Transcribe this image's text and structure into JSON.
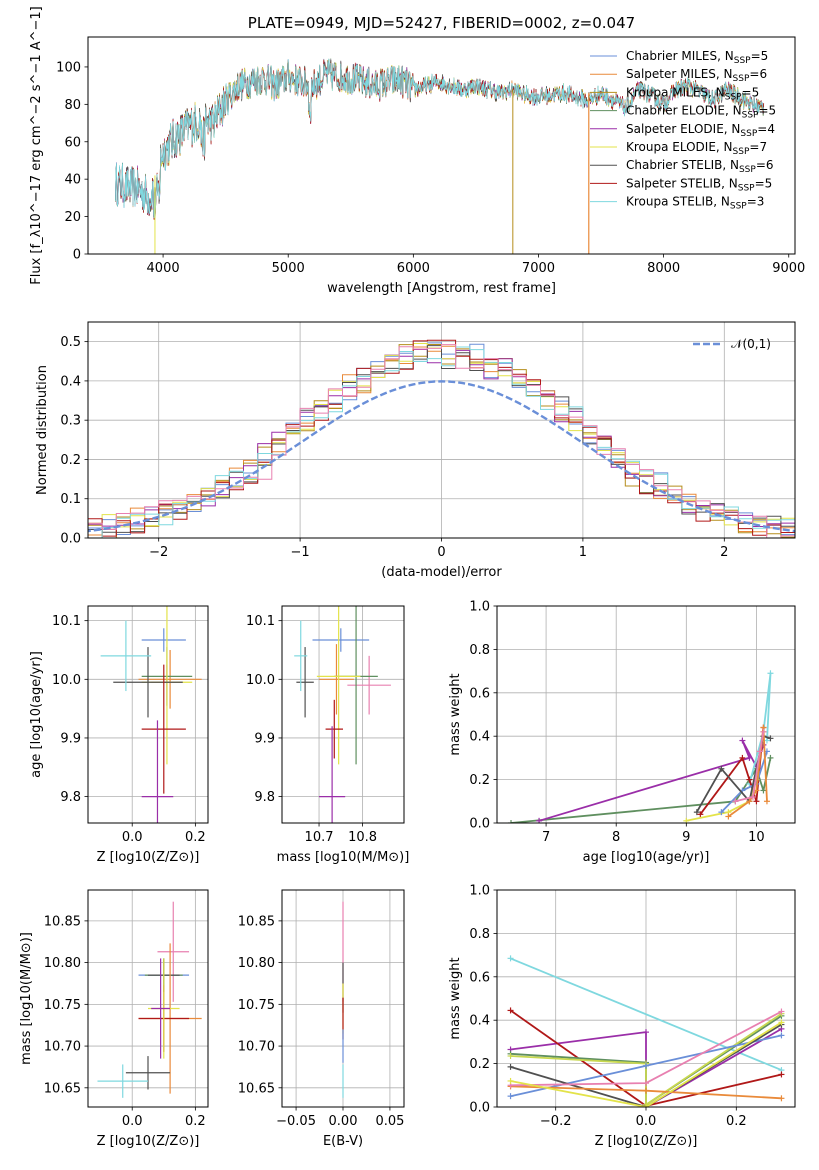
{
  "colors": [
    "#6a8fd8",
    "#e98a3a",
    "#b58e1c",
    "#5f8f5f",
    "#9a2ea8",
    "#e3e34a",
    "#505050",
    "#b01818",
    "#7fd8df",
    "#e880b0",
    "#c8d850"
  ],
  "chart_data": [
    {
      "id": "spectrum",
      "type": "line",
      "title": "PLATE=0949, MJD=52427, FIBERID=0002, z=0.047",
      "xlabel": "wavelength [Angstrom, rest frame]",
      "ylabel": "Flux [f_λ10^−17 erg cm^−2 s^−1 A^−1]",
      "xlim": [
        3400,
        9050
      ],
      "ylim": [
        0,
        116
      ],
      "xticks": [
        4000,
        5000,
        6000,
        7000,
        8000,
        9000
      ],
      "yticks": [
        0,
        20,
        40,
        60,
        80,
        100
      ],
      "grid": false,
      "legend_position": "top-right",
      "spectrum_x": [
        3620,
        3700,
        3800,
        3900,
        3950,
        4000,
        4100,
        4200,
        4300,
        4400,
        4500,
        4600,
        4700,
        4800,
        4900,
        5000,
        5100,
        5200,
        5300,
        5400,
        5500,
        5600,
        5700,
        5800,
        5900,
        6000,
        6100,
        6200,
        6300,
        6400,
        6500,
        6600,
        6700,
        6800,
        6900,
        7000,
        7100,
        7200,
        7300,
        7400,
        7500,
        7600,
        7700,
        7800,
        7900,
        8000,
        8100,
        8200,
        8300,
        8400,
        8500,
        8600,
        8700,
        8800
      ],
      "spectrum_y": [
        38,
        36,
        35,
        30,
        45,
        55,
        62,
        68,
        72,
        70,
        82,
        90,
        92,
        94,
        90,
        95,
        92,
        90,
        96,
        95,
        94,
        92,
        90,
        92,
        93,
        88,
        90,
        92,
        90,
        88,
        90,
        88,
        86,
        88,
        85,
        84,
        85,
        86,
        84,
        82,
        86,
        82,
        78,
        88,
        85,
        80,
        88,
        90,
        86,
        82,
        88,
        84,
        80,
        78
      ],
      "series": [
        {
          "name": "Chabrier MILES, N_SSP=5",
          "color": "#6a8fd8"
        },
        {
          "name": "Salpeter MILES, N_SSP=6",
          "color": "#e98a3a"
        },
        {
          "name": "Kroupa MILES, N_SSP=5",
          "color": "#b58e1c"
        },
        {
          "name": "Chabrier ELODIE, N_SSP=5",
          "color": "#5f8f5f"
        },
        {
          "name": "Salpeter ELODIE, N_SSP=4",
          "color": "#9a2ea8"
        },
        {
          "name": "Kroupa ELODIE, N_SSP=7",
          "color": "#e3e34a"
        },
        {
          "name": "Chabrier STELIB, N_SSP=6",
          "color": "#505050"
        },
        {
          "name": "Salpeter STELIB, N_SSP=5",
          "color": "#b01818"
        },
        {
          "name": "Kroupa STELIB, N_SSP=3",
          "color": "#7fd8df"
        }
      ]
    },
    {
      "id": "residuals",
      "type": "histogram",
      "xlabel": "(data-model)/error",
      "ylabel": "Normed distribution",
      "xlim": [
        -2.5,
        2.5
      ],
      "ylim": [
        0,
        0.55
      ],
      "xticks": [
        -2,
        -1,
        0,
        1,
        2
      ],
      "yticks": [
        0.0,
        0.1,
        0.2,
        0.3,
        0.4,
        0.5
      ],
      "grid": true,
      "legend_position": "top-right",
      "legend_label": "𝒩(0,1)",
      "gauss_color": "#6a8fd8",
      "bin_width": 0.1,
      "n_histograms": 9
    },
    {
      "id": "age_vs_Z",
      "type": "errorbar",
      "xlabel": "Z [log10(Z/Z⊙)]",
      "ylabel": "age  [log10(age/yr)]",
      "xlim": [
        -0.14,
        0.24
      ],
      "ylim": [
        9.755,
        10.125
      ],
      "xticks": [
        0.0,
        0.2
      ],
      "yticks": [
        9.8,
        9.9,
        10.0,
        10.1
      ],
      "grid": true,
      "points": [
        {
          "x": 0.1,
          "y": 10.067,
          "xerr": 0.07,
          "yerr": 0.02,
          "color": "#6a8fd8"
        },
        {
          "x": 0.11,
          "y": 9.995,
          "xerr": 0.05,
          "yerr": 0.03,
          "color": "#e880b0"
        },
        {
          "x": 0.12,
          "y": 10.0,
          "xerr": 0.1,
          "yerr": 0.05,
          "color": "#e98a3a"
        },
        {
          "x": 0.11,
          "y": 10.005,
          "xerr": 0.08,
          "yerr": 0.05,
          "color": "#5f8f5f"
        },
        {
          "x": 0.11,
          "y": 9.995,
          "xerr": 0.08,
          "yerr": 0.14,
          "color": "#e3e34a"
        },
        {
          "x": 0.05,
          "y": 9.995,
          "xerr": 0.11,
          "yerr": 0.06,
          "color": "#505050"
        },
        {
          "x": 0.1,
          "y": 9.915,
          "xerr": 0.07,
          "yerr": 0.11,
          "color": "#b01818"
        },
        {
          "x": 0.08,
          "y": 9.8,
          "xerr": 0.05,
          "yerr": 0.13,
          "color": "#9a2ea8"
        },
        {
          "x": -0.02,
          "y": 10.04,
          "xerr": 0.08,
          "yerr": 0.06,
          "color": "#7fd8df"
        }
      ]
    },
    {
      "id": "age_vs_mass",
      "type": "errorbar",
      "xlabel": "mass [log10(M/M⊙)]",
      "ylabel": "",
      "xlim": [
        10.615,
        10.895
      ],
      "ylim": [
        9.755,
        10.125
      ],
      "xticks": [
        10.7,
        10.8
      ],
      "yticks": [
        9.8,
        9.9,
        10.0,
        10.1
      ],
      "grid": true,
      "points": [
        {
          "x": 10.75,
          "y": 10.067,
          "xerr": 0.065,
          "yerr": 0.02,
          "color": "#6a8fd8"
        },
        {
          "x": 10.815,
          "y": 9.99,
          "xerr": 0.05,
          "yerr": 0.05,
          "color": "#e880b0"
        },
        {
          "x": 10.74,
          "y": 10.0,
          "xerr": 0.04,
          "yerr": 0.06,
          "color": "#e98a3a"
        },
        {
          "x": 10.785,
          "y": 10.005,
          "xerr": 0.05,
          "yerr": 0.15,
          "color": "#5f8f5f"
        },
        {
          "x": 10.745,
          "y": 10.005,
          "xerr": 0.05,
          "yerr": 0.15,
          "color": "#e3e34a"
        },
        {
          "x": 10.668,
          "y": 9.995,
          "xerr": 0.02,
          "yerr": 0.06,
          "color": "#505050"
        },
        {
          "x": 10.735,
          "y": 9.915,
          "xerr": 0.02,
          "yerr": 0.05,
          "color": "#b01818"
        },
        {
          "x": 10.73,
          "y": 9.8,
          "xerr": 0.03,
          "yerr": 0.12,
          "color": "#9a2ea8"
        },
        {
          "x": 10.658,
          "y": 10.04,
          "xerr": 0.015,
          "yerr": 0.06,
          "color": "#7fd8df"
        }
      ]
    },
    {
      "id": "weight_vs_age",
      "type": "line",
      "xlabel": "age  [log10(age/yr)]",
      "ylabel": "mass weight",
      "xlim": [
        6.3,
        10.55
      ],
      "ylim": [
        0,
        1
      ],
      "xticks": [
        7,
        8,
        9,
        10
      ],
      "yticks": [
        0.0,
        0.2,
        0.4,
        0.6,
        0.8,
        1.0
      ],
      "grid": true,
      "series": [
        {
          "color": "#5f8f5f",
          "x": [
            6.5,
            9.7,
            10.0,
            10.1,
            10.2
          ],
          "y": [
            0.0,
            0.1,
            0.25,
            0.15,
            0.3
          ]
        },
        {
          "color": "#9a2ea8",
          "x": [
            6.9,
            9.9,
            9.8,
            10.0,
            10.1
          ],
          "y": [
            0.01,
            0.3,
            0.38,
            0.26,
            0.36
          ]
        },
        {
          "color": "#7fd8df",
          "x": [
            9.9,
            10.1,
            10.2,
            10.15
          ],
          "y": [
            0.18,
            0.42,
            0.69,
            0.38
          ]
        },
        {
          "color": "#b01818",
          "x": [
            9.2,
            9.8,
            9.9,
            10.0,
            10.1
          ],
          "y": [
            0.04,
            0.3,
            0.2,
            0.1,
            0.44
          ]
        },
        {
          "color": "#e3e34a",
          "x": [
            9.0,
            9.6,
            9.9,
            10.0,
            10.1
          ],
          "y": [
            0.01,
            0.05,
            0.1,
            0.2,
            0.42
          ]
        },
        {
          "color": "#6a8fd8",
          "x": [
            9.5,
            9.8,
            10.0,
            10.15
          ],
          "y": [
            0.05,
            0.15,
            0.18,
            0.33
          ]
        },
        {
          "color": "#505050",
          "x": [
            9.15,
            9.5,
            9.9,
            10.1,
            10.2
          ],
          "y": [
            0.05,
            0.25,
            0.1,
            0.4,
            0.39
          ]
        },
        {
          "color": "#e98a3a",
          "x": [
            9.6,
            9.9,
            10.0,
            10.1,
            10.15
          ],
          "y": [
            0.03,
            0.1,
            0.15,
            0.44,
            0.1
          ]
        },
        {
          "color": "#e880b0",
          "x": [
            9.7,
            9.95,
            10.05,
            10.1
          ],
          "y": [
            0.1,
            0.12,
            0.33,
            0.42
          ]
        }
      ]
    },
    {
      "id": "mass_vs_Z",
      "type": "errorbar",
      "xlabel": "Z [log10(Z/Z⊙)]",
      "ylabel": "mass [log10(M/M⊙)]",
      "xlim": [
        -0.14,
        0.24
      ],
      "ylim": [
        10.627,
        10.887
      ],
      "xticks": [
        0.0,
        0.2
      ],
      "yticks": [
        10.65,
        10.7,
        10.75,
        10.8,
        10.85
      ],
      "grid": true,
      "points": [
        {
          "x": 0.13,
          "y": 10.813,
          "xerr": 0.05,
          "yerr": 0.06,
          "color": "#e880b0"
        },
        {
          "x": 0.1,
          "y": 10.785,
          "xerr": 0.08,
          "yerr": 0.02,
          "color": "#6a8fd8"
        },
        {
          "x": 0.1,
          "y": 10.785,
          "xerr": 0.06,
          "yerr": 0.02,
          "color": "#5f8f5f"
        },
        {
          "x": 0.1,
          "y": 10.785,
          "xerr": 0.05,
          "yerr": 0.02,
          "color": "#505050"
        },
        {
          "x": 0.12,
          "y": 10.733,
          "xerr": 0.1,
          "yerr": 0.09,
          "color": "#e98a3a"
        },
        {
          "x": 0.1,
          "y": 10.733,
          "xerr": 0.08,
          "yerr": 0.04,
          "color": "#b01818"
        },
        {
          "x": 0.1,
          "y": 10.745,
          "xerr": 0.05,
          "yerr": 0.06,
          "color": "#e3e34a"
        },
        {
          "x": 0.09,
          "y": 10.745,
          "xerr": 0.03,
          "yerr": 0.06,
          "color": "#9a2ea8"
        },
        {
          "x": 0.05,
          "y": 10.668,
          "xerr": 0.07,
          "yerr": 0.02,
          "color": "#505050"
        },
        {
          "x": -0.03,
          "y": 10.658,
          "xerr": 0.08,
          "yerr": 0.02,
          "color": "#7fd8df"
        }
      ]
    },
    {
      "id": "mass_vs_ebv",
      "type": "errorbar",
      "xlabel": "E(B-V)",
      "ylabel": "",
      "xlim": [
        -0.065,
        0.065
      ],
      "ylim": [
        10.627,
        10.887
      ],
      "xticks": [
        -0.05,
        0.0,
        0.05
      ],
      "yticks": [
        10.65,
        10.7,
        10.75,
        10.8,
        10.85
      ],
      "grid": true,
      "points": [
        {
          "x": 0.0,
          "y": 10.813,
          "xerr": 0.0,
          "yerr": 0.06,
          "color": "#e880b0"
        },
        {
          "x": 0.0,
          "y": 10.77,
          "xerr": 0.0,
          "yerr": 0.03,
          "color": "#505050"
        },
        {
          "x": 0.0,
          "y": 10.745,
          "xerr": 0.0,
          "yerr": 0.03,
          "color": "#e3e34a"
        },
        {
          "x": 0.0,
          "y": 10.733,
          "xerr": 0.0,
          "yerr": 0.025,
          "color": "#b01818"
        },
        {
          "x": 0.0,
          "y": 10.7,
          "xerr": 0.0,
          "yerr": 0.02,
          "color": "#6a8fd8"
        },
        {
          "x": 0.0,
          "y": 10.658,
          "xerr": 0.0,
          "yerr": 0.02,
          "color": "#7fd8df"
        }
      ]
    },
    {
      "id": "weight_vs_Z",
      "type": "line",
      "xlabel": "Z [log10(Z/Z⊙)]",
      "ylabel": "mass weight",
      "xlim": [
        -0.33,
        0.33
      ],
      "ylim": [
        0,
        1
      ],
      "xticks": [
        -0.2,
        0.0,
        0.2
      ],
      "yticks": [
        0.0,
        0.2,
        0.4,
        0.6,
        0.8,
        1.0
      ],
      "grid": true,
      "series": [
        {
          "color": "#7fd8df",
          "x": [
            -0.3,
            0.3
          ],
          "y": [
            0.685,
            0.17
          ]
        },
        {
          "color": "#9a2ea8",
          "x": [
            -0.3,
            0.0,
            0.0,
            0.3
          ],
          "y": [
            0.265,
            0.345,
            0.0,
            0.36
          ]
        },
        {
          "color": "#b01818",
          "x": [
            -0.3,
            0.0,
            0.3
          ],
          "y": [
            0.445,
            0.005,
            0.15
          ]
        },
        {
          "color": "#5f8f5f",
          "x": [
            -0.3,
            0.0,
            0.0,
            0.3
          ],
          "y": [
            0.245,
            0.205,
            0.01,
            0.42
          ]
        },
        {
          "color": "#c8d850",
          "x": [
            -0.3,
            0.0,
            0.0,
            0.3
          ],
          "y": [
            0.235,
            0.2,
            0.01,
            0.43
          ]
        },
        {
          "color": "#6a8fd8",
          "x": [
            -0.3,
            0.0,
            0.3
          ],
          "y": [
            0.05,
            0.19,
            0.33
          ]
        },
        {
          "color": "#505050",
          "x": [
            -0.3,
            0.0,
            0.3
          ],
          "y": [
            0.185,
            0.0,
            0.38
          ]
        },
        {
          "color": "#e98a3a",
          "x": [
            -0.3,
            0.0,
            0.3
          ],
          "y": [
            0.095,
            0.075,
            0.04
          ]
        },
        {
          "color": "#e880b0",
          "x": [
            -0.3,
            0.0,
            0.3
          ],
          "y": [
            0.1,
            0.11,
            0.44
          ]
        },
        {
          "color": "#e3e34a",
          "x": [
            -0.3,
            0.0,
            0.3
          ],
          "y": [
            0.12,
            0.0,
            0.39
          ]
        }
      ]
    }
  ]
}
